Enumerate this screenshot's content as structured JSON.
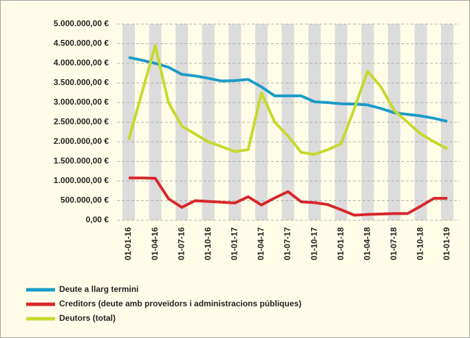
{
  "chart_data": {
    "type": "line",
    "categories": [
      "01-01-16",
      null,
      "01-04-16",
      null,
      "01-07-16",
      null,
      "01-10-16",
      null,
      "01-01-17",
      null,
      "01-04-17",
      null,
      "01-07-17",
      null,
      "01-10-17",
      null,
      "01-01-18",
      null,
      "01-04-18",
      null,
      "01-07-18",
      null,
      "01-10-18",
      null,
      "01-01-19"
    ],
    "series": [
      {
        "name": "Deute a llarg termini",
        "color": "#1b9bc9",
        "values": [
          4150000,
          4080000,
          4000000,
          3900000,
          3720000,
          3680000,
          3620000,
          3550000,
          3560000,
          3590000,
          3400000,
          3170000,
          3170000,
          3170000,
          3020000,
          3000000,
          2970000,
          2960000,
          2940000,
          2850000,
          2740000,
          2700000,
          2660000,
          2600000,
          2520000
        ]
      },
      {
        "name": "Creditors (deute amb proveïdors i administracions públiques)",
        "color": "#d7262b",
        "values": [
          1080000,
          1080000,
          1070000,
          550000,
          330000,
          500000,
          480000,
          460000,
          440000,
          600000,
          390000,
          570000,
          730000,
          470000,
          450000,
          400000,
          270000,
          130000,
          150000,
          160000,
          170000,
          170000,
          360000,
          560000,
          560000
        ]
      },
      {
        "name": "Deutors (total)",
        "color": "#c6d92e",
        "values": [
          2050000,
          3250000,
          4450000,
          3000000,
          2400000,
          2200000,
          2000000,
          1880000,
          1750000,
          1800000,
          3250000,
          2500000,
          2150000,
          1730000,
          1680000,
          1800000,
          1950000,
          2850000,
          3800000,
          3400000,
          2800000,
          2500000,
          2200000,
          2000000,
          1820000
        ]
      }
    ],
    "ylim": [
      0,
      5000000
    ],
    "yticks": [
      {
        "value": 0,
        "label": "0,00 €"
      },
      {
        "value": 500000,
        "label": "500.000,00 €"
      },
      {
        "value": 1000000,
        "label": "1.000.000,00 €"
      },
      {
        "value": 1500000,
        "label": "1.500.000,00 €"
      },
      {
        "value": 2000000,
        "label": "2.000.000,00 €"
      },
      {
        "value": 2500000,
        "label": "2.500.000,00 €"
      },
      {
        "value": 3000000,
        "label": "3.000.000,00 €"
      },
      {
        "value": 3500000,
        "label": "3.500.000,00 €"
      },
      {
        "value": 4000000,
        "label": "4.000.000,00 €"
      },
      {
        "value": 4500000,
        "label": "4.500.000,00 €"
      },
      {
        "value": 5000000,
        "label": "5.000.000,00 €"
      }
    ],
    "grid": true,
    "legend": "bottom-left"
  }
}
